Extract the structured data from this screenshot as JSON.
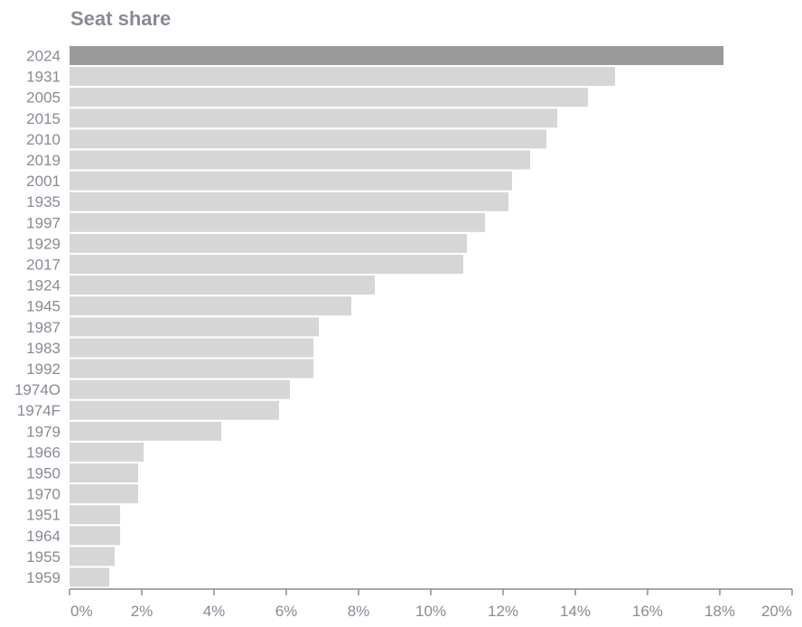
{
  "chart_data": {
    "type": "bar",
    "orientation": "horizontal",
    "title": "Seat share",
    "xlabel": "",
    "ylabel": "",
    "categories": [
      "2024",
      "1931",
      "2005",
      "2015",
      "2010",
      "2019",
      "2001",
      "1935",
      "1997",
      "1929",
      "2017",
      "1924",
      "1945",
      "1987",
      "1983",
      "1992",
      "1974O",
      "1974F",
      "1979",
      "1966",
      "1950",
      "1970",
      "1951",
      "1964",
      "1955",
      "1959"
    ],
    "values": [
      18.1,
      15.1,
      14.35,
      13.5,
      13.2,
      12.75,
      12.25,
      12.15,
      11.5,
      11.0,
      10.9,
      8.45,
      7.8,
      6.9,
      6.75,
      6.75,
      6.1,
      5.8,
      4.2,
      2.05,
      1.9,
      1.9,
      1.4,
      1.4,
      1.25,
      1.1
    ],
    "xlim": [
      0,
      20
    ],
    "xticks": [
      "0%",
      "2%",
      "4%",
      "6%",
      "8%",
      "10%",
      "12%",
      "14%",
      "16%",
      "18%",
      "20%"
    ],
    "highlight_category": "2024",
    "colors": {
      "highlight": "#9a9a9a",
      "bar": "#d6d6d6",
      "axis": "#8a8a96",
      "text": "#8a8a96"
    },
    "grid": false
  }
}
